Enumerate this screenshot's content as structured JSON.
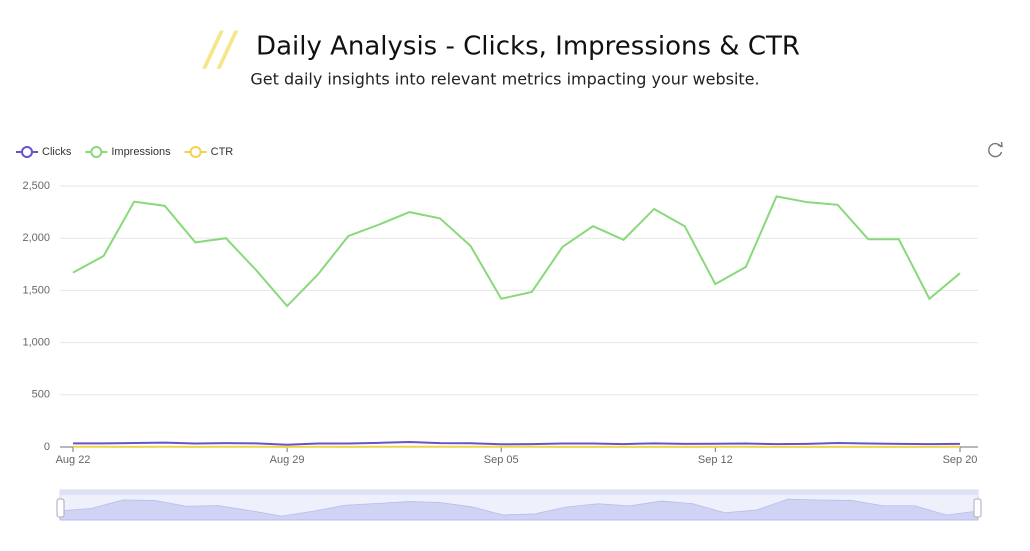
{
  "chart_data": {
    "type": "line",
    "title": "Daily Analysis - Clicks, Impressions & CTR",
    "subtitle": "Get daily insights into relevant metrics impacting your website.",
    "categories": [
      "Aug 22",
      null,
      null,
      null,
      null,
      null,
      null,
      "Aug 29",
      null,
      null,
      null,
      null,
      null,
      null,
      "Sep 05",
      null,
      null,
      null,
      null,
      null,
      null,
      "Sep 12",
      null,
      null,
      null,
      null,
      null,
      null,
      null,
      "Sep 20"
    ],
    "series": [
      {
        "name": "Clicks",
        "color": "#6456c8",
        "values": [
          35,
          35,
          38,
          42,
          33,
          37,
          35,
          22,
          34,
          33,
          40,
          48,
          37,
          36,
          26,
          27,
          33,
          34,
          28,
          35,
          30,
          31,
          33,
          27,
          30,
          38,
          34,
          30,
          28,
          30
        ]
      },
      {
        "name": "Impressions",
        "color": "#88d97a",
        "values": [
          1670,
          1830,
          2350,
          2310,
          1960,
          2000,
          1690,
          1350,
          1650,
          2020,
          2130,
          2250,
          2190,
          1925,
          1420,
          1485,
          1915,
          2115,
          1985,
          2280,
          2115,
          1560,
          1725,
          2400,
          2345,
          2320,
          1990,
          1990,
          1420,
          1665
        ]
      },
      {
        "name": "CTR",
        "color": "#f2d24b",
        "values": [
          2.1,
          1.9,
          1.6,
          1.8,
          1.7,
          1.8,
          2.1,
          1.6,
          2.1,
          1.6,
          1.9,
          2.1,
          1.9,
          1.9,
          1.8,
          1.8,
          1.7,
          1.6,
          1.4,
          1.5,
          1.4,
          2.0,
          1.9,
          1.1,
          1.3,
          1.6,
          1.7,
          1.5,
          1.7,
          1.8
        ]
      }
    ],
    "ylim": [
      0,
      2500
    ],
    "yticks": [
      0,
      500,
      {
        "value": 1000,
        "label": "1,000"
      },
      {
        "value": 1500,
        "label": "1,500"
      },
      {
        "value": 2000,
        "label": "2,000"
      },
      {
        "value": 2500,
        "label": "2,500"
      }
    ],
    "grid": true,
    "legend": "top-left"
  }
}
